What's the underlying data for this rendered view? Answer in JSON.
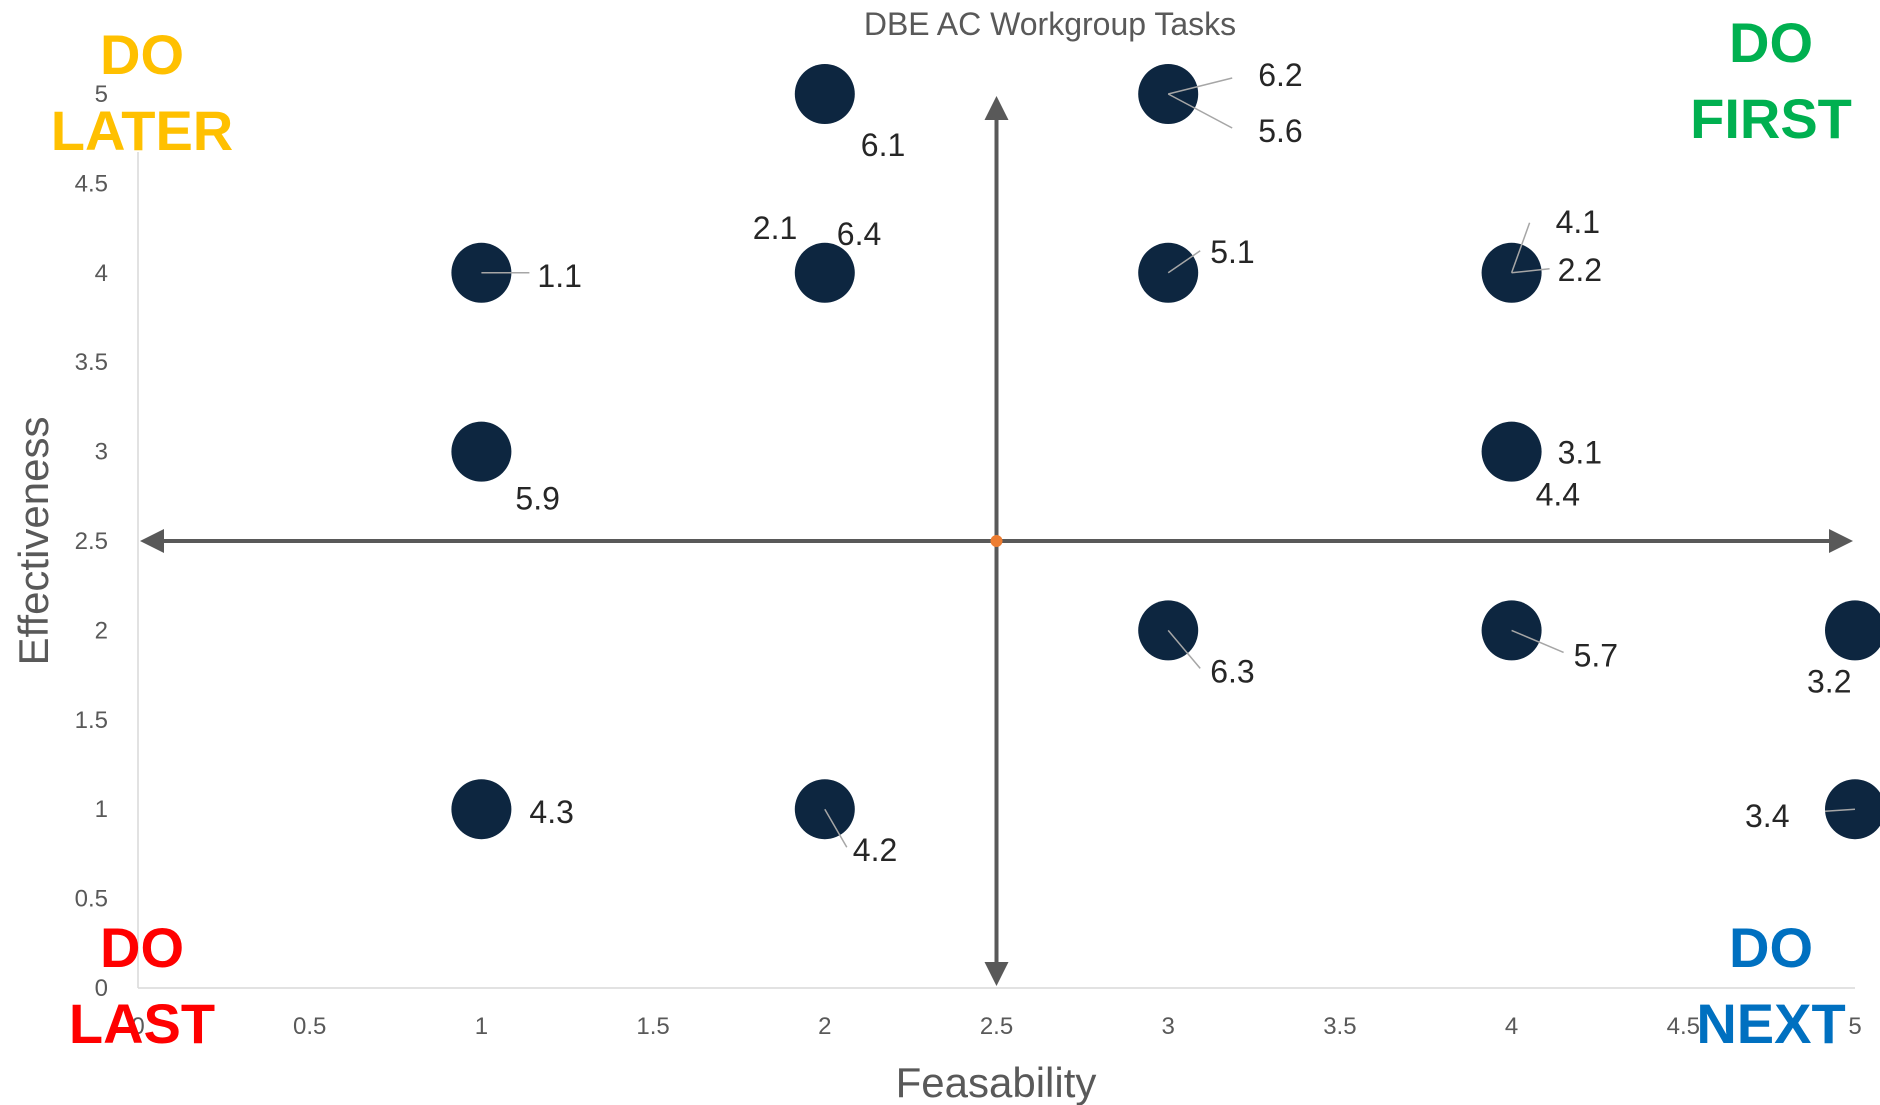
{
  "chart_data": {
    "type": "scatter",
    "title": "DBE AC Workgroup Tasks",
    "xlabel": "Feasability",
    "ylabel": "Effectiveness",
    "xlim": [
      0,
      5
    ],
    "ylim": [
      0,
      5
    ],
    "x_ticks": [
      "0",
      "0.5",
      "1",
      "1.5",
      "2",
      "2.5",
      "3",
      "3.5",
      "4",
      "4.5",
      "5"
    ],
    "y_ticks": [
      "0",
      "0.5",
      "1",
      "1.5",
      "2",
      "2.5",
      "3",
      "3.5",
      "4",
      "4.5",
      "5"
    ],
    "grid": false,
    "quadrant_center": [
      2.5,
      2.5
    ],
    "points": [
      {
        "label": "6.1",
        "x": 2,
        "y": 5
      },
      {
        "label": "6.2",
        "x": 3,
        "y": 5
      },
      {
        "label": "5.6",
        "x": 3,
        "y": 5
      },
      {
        "label": "1.1",
        "x": 1,
        "y": 4
      },
      {
        "label": "2.1",
        "x": 2,
        "y": 4
      },
      {
        "label": "6.4",
        "x": 2,
        "y": 4
      },
      {
        "label": "5.1",
        "x": 3,
        "y": 4
      },
      {
        "label": "4.1",
        "x": 4,
        "y": 4
      },
      {
        "label": "2.2",
        "x": 4,
        "y": 4
      },
      {
        "label": "5.9",
        "x": 1,
        "y": 3
      },
      {
        "label": "3.1",
        "x": 4,
        "y": 3
      },
      {
        "label": "4.4",
        "x": 4,
        "y": 3
      },
      {
        "label": "6.3",
        "x": 3,
        "y": 2
      },
      {
        "label": "5.7",
        "x": 4,
        "y": 2
      },
      {
        "label": "3.2",
        "x": 5,
        "y": 2
      },
      {
        "label": "4.3",
        "x": 1,
        "y": 1
      },
      {
        "label": "4.2",
        "x": 2,
        "y": 1
      },
      {
        "label": "3.4",
        "x": 5,
        "y": 1
      }
    ],
    "quadrants": [
      {
        "name": "do-later",
        "lines": [
          "DO",
          "LATER"
        ],
        "color": "#FFC000",
        "position": "top-left"
      },
      {
        "name": "do-first",
        "lines": [
          "DO",
          "FIRST"
        ],
        "color": "#00B050",
        "position": "top-right"
      },
      {
        "name": "do-last",
        "lines": [
          "DO",
          "LAST"
        ],
        "color": "#FF0000",
        "position": "bottom-left"
      },
      {
        "name": "do-next",
        "lines": [
          "DO",
          "NEXT"
        ],
        "color": "#0070C0",
        "position": "bottom-right"
      }
    ],
    "colors": {
      "marker": "#0D2640",
      "arrow": "#595959",
      "center_point": "#ED7D31"
    }
  }
}
